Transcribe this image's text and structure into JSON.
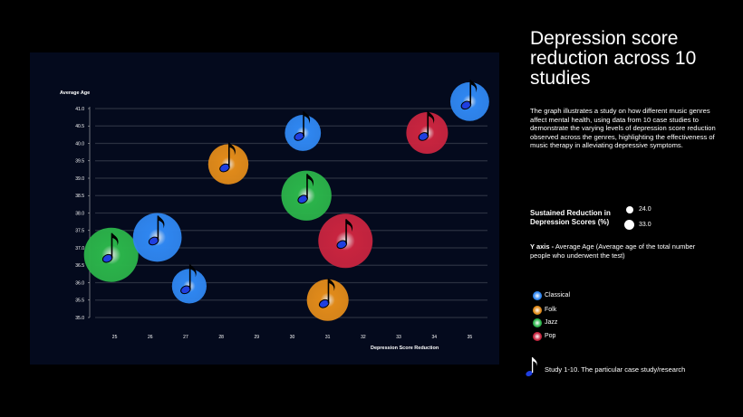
{
  "title": "Depression score reduction across 10 studies",
  "description": "The graph illustrates a study on how different music genres affect mental health, using data from 10 case studies to demonstrate the varying levels of depression score reduction observed across the genres, highlighting the effectiveness of music therapy in alleviating depressive symptoms.",
  "size_legend": {
    "title": "Sustained Reduction in Depression Scores (%)",
    "small_label": "24.0",
    "large_label": "33.0"
  },
  "y_axis_note": {
    "label": "Y axis -",
    "text": "Average Age (Average age of the total number people who underwent the test)"
  },
  "genre_legend": [
    {
      "name": "Classical",
      "color": "#2f86f0"
    },
    {
      "name": "Folk",
      "color": "#e08a1a"
    },
    {
      "name": "Jazz",
      "color": "#2bb34a"
    },
    {
      "name": "Pop",
      "color": "#c8243f"
    }
  ],
  "study_note": {
    "icon": "music-note-icon",
    "text": "Study 1-10. The particular case study/research"
  },
  "chart_data": {
    "type": "scatter",
    "title": "Depression score reduction across 10 studies",
    "xlabel": "Depression Score Reduction",
    "ylabel": "Average Age",
    "xlim": [
      24.5,
      35.5
    ],
    "ylim": [
      35.0,
      41.0
    ],
    "x_ticks": [
      "25",
      "26",
      "27",
      "28",
      "29",
      "30",
      "31",
      "32",
      "33",
      "34",
      "35"
    ],
    "y_ticks": [
      "35.0",
      "35.5",
      "36.0",
      "36.5",
      "37.0",
      "37.5",
      "38.0",
      "38.5",
      "39.0",
      "39.5",
      "40.0",
      "40.5",
      "41.0"
    ],
    "size_encoding": "Sustained Reduction in Depression Scores (%)",
    "size_range": [
      24.0,
      33.0
    ],
    "points": [
      {
        "study": 1,
        "genre": "Jazz",
        "x": 24.9,
        "y": 36.8,
        "size": 33.0
      },
      {
        "study": 2,
        "genre": "Classical",
        "x": 26.2,
        "y": 37.3,
        "size": 31.0
      },
      {
        "study": 3,
        "genre": "Classical",
        "x": 27.1,
        "y": 35.9,
        "size": 26.0
      },
      {
        "study": 4,
        "genre": "Folk",
        "x": 28.2,
        "y": 39.4,
        "size": 28.0
      },
      {
        "study": 5,
        "genre": "Classical",
        "x": 30.3,
        "y": 40.3,
        "size": 26.5
      },
      {
        "study": 6,
        "genre": "Jazz",
        "x": 30.4,
        "y": 38.5,
        "size": 31.5
      },
      {
        "study": 7,
        "genre": "Folk",
        "x": 31.0,
        "y": 35.5,
        "size": 28.5
      },
      {
        "study": 8,
        "genre": "Pop",
        "x": 31.5,
        "y": 37.2,
        "size": 33.0
      },
      {
        "study": 9,
        "genre": "Pop",
        "x": 33.8,
        "y": 40.3,
        "size": 28.5
      },
      {
        "study": 10,
        "genre": "Classical",
        "x": 35.0,
        "y": 41.2,
        "size": 27.5
      }
    ]
  }
}
